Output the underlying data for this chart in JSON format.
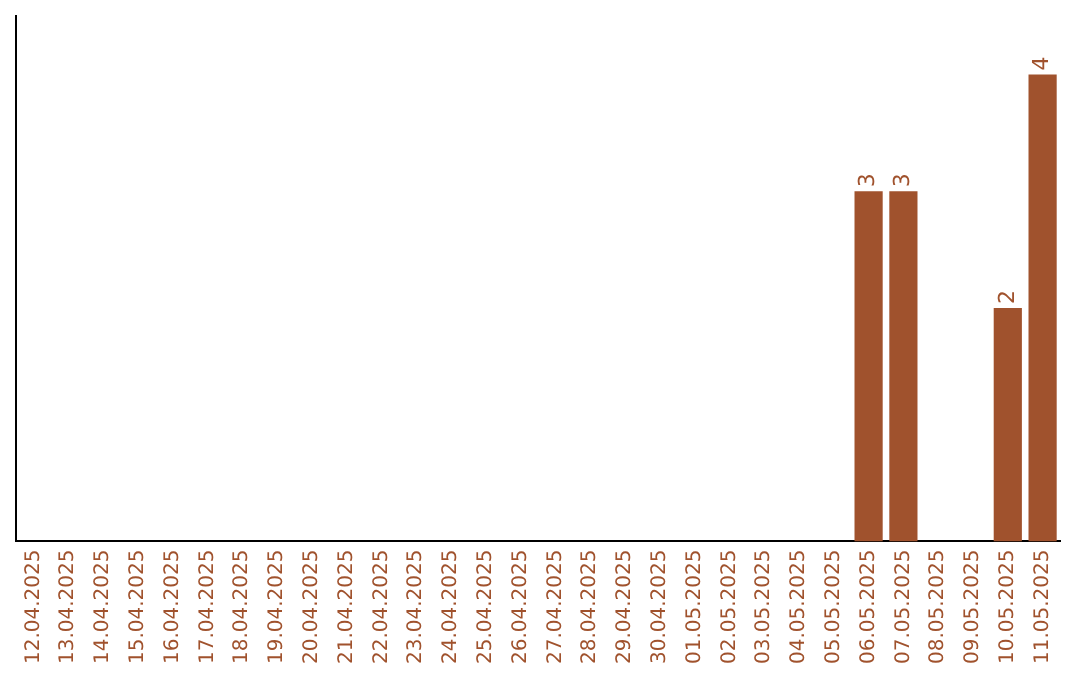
{
  "chart_data": {
    "type": "bar",
    "categories": [
      "12.04.2025",
      "13.04.2025",
      "14.04.2025",
      "15.04.2025",
      "16.04.2025",
      "17.04.2025",
      "18.04.2025",
      "19.04.2025",
      "20.04.2025",
      "21.04.2025",
      "22.04.2025",
      "23.04.2025",
      "24.04.2025",
      "25.04.2025",
      "26.04.2025",
      "27.04.2025",
      "28.04.2025",
      "29.04.2025",
      "30.04.2025",
      "01.05.2025",
      "02.05.2025",
      "03.05.2025",
      "04.05.2025",
      "05.05.2025",
      "06.05.2025",
      "07.05.2025",
      "08.05.2025",
      "09.05.2025",
      "10.05.2025",
      "11.05.2025"
    ],
    "values": [
      null,
      null,
      null,
      null,
      null,
      null,
      null,
      null,
      null,
      null,
      null,
      null,
      null,
      null,
      null,
      null,
      null,
      null,
      null,
      null,
      null,
      null,
      null,
      null,
      3,
      3,
      null,
      null,
      2,
      4
    ],
    "data_labels": true,
    "color": "#a0522d",
    "grid": false,
    "tick_labels": "x"
  }
}
